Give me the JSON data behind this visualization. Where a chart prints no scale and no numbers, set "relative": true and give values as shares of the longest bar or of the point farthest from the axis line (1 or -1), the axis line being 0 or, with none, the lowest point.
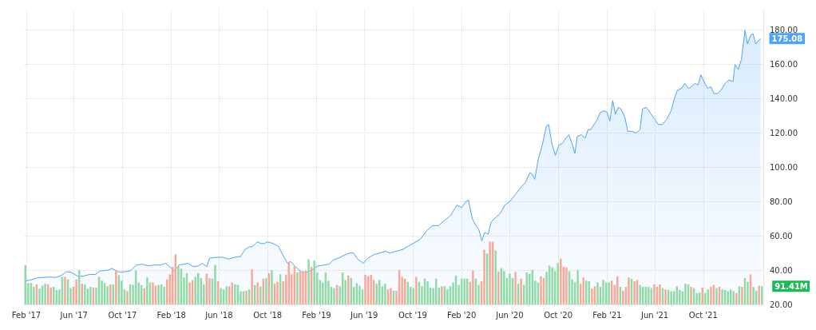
{
  "chart_data": [
    {
      "type": "area",
      "color": "#4da3f7",
      "marker": "none",
      "grid": true,
      "x": [
        "2017-01-26",
        "2017-02-15",
        "2017-03-01",
        "2017-03-15",
        "2017-04-01",
        "2017-04-15",
        "2017-05-01",
        "2017-05-12",
        "2017-05-25",
        "2017-06-10",
        "2017-06-25",
        "2017-07-10",
        "2017-07-25",
        "2017-08-05",
        "2017-08-25",
        "2017-09-05",
        "2017-09-20",
        "2017-10-05",
        "2017-10-20",
        "2017-11-05",
        "2017-11-20",
        "2017-12-05",
        "2017-12-20",
        "2018-01-05",
        "2018-01-18",
        "2018-02-01",
        "2018-02-08",
        "2018-02-20",
        "2018-03-05",
        "2018-03-15",
        "2018-03-28",
        "2018-04-10",
        "2018-04-20",
        "2018-05-01",
        "2018-05-08",
        "2018-05-25",
        "2018-06-10",
        "2018-06-25",
        "2018-07-10",
        "2018-07-25",
        "2018-08-05",
        "2018-08-15",
        "2018-08-25",
        "2018-09-05",
        "2018-09-15",
        "2018-09-22",
        "2018-10-01",
        "2018-10-15",
        "2018-10-28",
        "2018-11-08",
        "2018-11-20",
        "2018-11-28",
        "2018-12-10",
        "2018-12-25",
        "2019-01-05",
        "2019-01-20",
        "2019-02-05",
        "2019-02-20",
        "2019-03-05",
        "2019-03-15",
        "2019-03-28",
        "2019-04-10",
        "2019-04-25",
        "2019-05-05",
        "2019-05-15",
        "2019-05-30",
        "2019-06-10",
        "2019-06-25",
        "2019-07-10",
        "2019-07-25",
        "2019-08-05",
        "2019-08-20",
        "2019-09-05",
        "2019-09-20",
        "2019-10-05",
        "2019-10-20",
        "2019-11-05",
        "2019-11-20",
        "2019-12-05",
        "2019-12-20",
        "2020-01-05",
        "2020-01-20",
        "2020-02-01",
        "2020-02-10",
        "2020-02-18",
        "2020-02-28",
        "2020-03-08",
        "2020-03-15",
        "2020-03-23",
        "2020-03-30",
        "2020-04-08",
        "2020-04-15",
        "2020-04-28",
        "2020-05-08",
        "2020-05-20",
        "2020-06-01",
        "2020-06-15",
        "2020-06-28",
        "2020-07-10",
        "2020-07-22",
        "2020-07-28",
        "2020-08-03",
        "2020-08-12",
        "2020-08-22",
        "2020-09-01",
        "2020-09-07",
        "2020-09-15",
        "2020-09-24",
        "2020-10-03",
        "2020-10-12",
        "2020-10-20",
        "2020-10-28",
        "2020-11-06",
        "2020-11-12",
        "2020-11-18",
        "2020-11-28",
        "2020-12-08",
        "2020-12-15",
        "2020-12-22",
        "2021-01-05",
        "2021-01-15",
        "2021-01-25",
        "2021-02-01",
        "2021-02-08",
        "2021-02-15",
        "2021-02-22",
        "2021-03-01",
        "2021-03-08",
        "2021-03-18",
        "2021-03-25",
        "2021-04-05",
        "2021-04-15",
        "2021-04-25",
        "2021-05-01",
        "2021-05-10",
        "2021-05-20",
        "2021-06-01",
        "2021-06-10",
        "2021-06-20",
        "2021-07-01",
        "2021-07-12",
        "2021-07-20",
        "2021-07-28",
        "2021-08-08",
        "2021-08-15",
        "2021-08-25",
        "2021-09-01",
        "2021-09-10",
        "2021-09-18",
        "2021-09-25",
        "2021-10-05",
        "2021-10-12",
        "2021-10-20",
        "2021-10-28",
        "2021-11-05",
        "2021-11-15",
        "2021-11-25",
        "2021-12-05",
        "2021-12-15",
        "2021-12-20",
        "2021-12-28",
        "2022-01-05",
        "2022-01-14",
        "2022-01-20",
        "2022-01-28",
        "2022-02-03",
        "2022-02-10",
        "2022-02-22"
      ],
      "values": [
        33.5,
        34.5,
        35.5,
        35.8,
        36,
        35.7,
        37,
        39,
        38.8,
        36.5,
        36.5,
        37.5,
        37.5,
        39.5,
        40,
        41,
        39,
        39,
        39.5,
        43,
        43.5,
        42.5,
        43,
        43,
        44,
        41,
        39.5,
        43,
        43.5,
        44,
        42,
        42.5,
        44,
        42,
        47,
        47.5,
        47.5,
        46.5,
        47.5,
        48,
        52,
        53.5,
        54,
        56.5,
        55.5,
        55.5,
        56.5,
        55.5,
        54,
        49,
        44,
        45,
        42,
        39,
        38.5,
        40,
        42.5,
        43,
        43.5,
        46,
        47,
        48.5,
        50,
        50,
        46.5,
        44,
        47,
        49,
        50,
        51,
        50,
        51,
        52,
        54,
        56,
        58,
        63,
        66,
        66,
        69,
        72,
        78,
        76.5,
        79.5,
        81,
        70,
        66,
        64,
        57,
        62,
        61,
        68,
        71,
        73,
        78,
        80,
        84,
        88,
        91,
        97,
        96,
        93,
        105,
        113,
        124,
        125,
        114,
        107,
        113,
        114,
        117,
        119,
        113,
        108,
        118,
        119,
        117,
        122,
        122,
        127,
        132,
        133,
        132,
        127,
        139,
        131,
        135,
        134,
        129,
        121,
        121,
        120,
        122,
        134,
        135,
        132,
        128,
        125,
        125,
        128,
        133,
        140,
        145,
        146,
        149,
        146,
        147,
        149,
        148,
        154,
        149,
        146,
        147,
        143,
        143,
        145,
        149,
        151,
        150,
        160,
        157,
        163,
        180,
        172,
        177,
        178,
        172,
        175.08
      ],
      "xlim": [
        "2017-01-26",
        "2022-03-01"
      ],
      "xticks": [
        {
          "value": "2017-02-01",
          "label": "Feb '17"
        },
        {
          "value": "2017-06-01",
          "label": "Jun '17"
        },
        {
          "value": "2017-10-01",
          "label": "Oct '17"
        },
        {
          "value": "2018-02-01",
          "label": "Feb '18"
        },
        {
          "value": "2018-06-01",
          "label": "Jun '18"
        },
        {
          "value": "2018-10-01",
          "label": "Oct '18"
        },
        {
          "value": "2019-02-01",
          "label": "Feb '19"
        },
        {
          "value": "2019-06-01",
          "label": "Jun '19"
        },
        {
          "value": "2019-10-01",
          "label": "Oct '19"
        },
        {
          "value": "2020-02-01",
          "label": "Feb '20"
        },
        {
          "value": "2020-06-01",
          "label": "Jun '20"
        },
        {
          "value": "2020-10-01",
          "label": "Oct '20"
        },
        {
          "value": "2021-02-01",
          "label": "Feb '21"
        },
        {
          "value": "2021-06-01",
          "label": "Jun '21"
        },
        {
          "value": "2021-10-01",
          "label": "Oct '21"
        }
      ],
      "ylim": [
        20,
        192
      ],
      "yticks": [
        {
          "value": 20,
          "label": "20.00"
        },
        {
          "value": 40,
          "label": "40.00"
        },
        {
          "value": 60,
          "label": "60.00"
        },
        {
          "value": 80,
          "label": "80.00"
        },
        {
          "value": 100,
          "label": "100.00"
        },
        {
          "value": 120,
          "label": "120.00"
        },
        {
          "value": 140,
          "label": "140.00"
        },
        {
          "value": 160,
          "label": "160.00"
        },
        {
          "value": 180,
          "label": "180.00"
        }
      ],
      "annotations": [
        {
          "text": "175.08",
          "x": "2022-02-22",
          "y": 175.08
        }
      ]
    },
    {
      "type": "bar",
      "relative": true,
      "annotations": [
        "91.41M"
      ],
      "categories": [
        null,
        null,
        null,
        null,
        null,
        null,
        null,
        null,
        null,
        null,
        null,
        null,
        null,
        null,
        null,
        null,
        null,
        null,
        null,
        null,
        null,
        null,
        null,
        null,
        null,
        null,
        null,
        null,
        null,
        null,
        null,
        null,
        null,
        null,
        null,
        null,
        null,
        null,
        null,
        null,
        null,
        null,
        null,
        null,
        null,
        null,
        null,
        null,
        null,
        null,
        null,
        null,
        null,
        null,
        null,
        null,
        null,
        null,
        null,
        null,
        null,
        null,
        null,
        null,
        null,
        null,
        null,
        null,
        null,
        null,
        null,
        null,
        null,
        null,
        null,
        null,
        null,
        null,
        null,
        null,
        null,
        null,
        null,
        null,
        null,
        null,
        null,
        null,
        null,
        null,
        null,
        null,
        null,
        null,
        null,
        null,
        null,
        null,
        null,
        null,
        null,
        null,
        null,
        null,
        null,
        null,
        null,
        null,
        null,
        null,
        null,
        null,
        null,
        null,
        null,
        null,
        null,
        null,
        null,
        null,
        null,
        null,
        null,
        null,
        null,
        null,
        null,
        null,
        null,
        null,
        null,
        null,
        null,
        null,
        null,
        null,
        null,
        null,
        null,
        null,
        null,
        null,
        null,
        null,
        null,
        null,
        null,
        null,
        null,
        null,
        null,
        null,
        null,
        null,
        null,
        null,
        null,
        null,
        null,
        null,
        null,
        null,
        null,
        null,
        null,
        null,
        null,
        null,
        null,
        null,
        null,
        null,
        null,
        null,
        null,
        null,
        null,
        null,
        null,
        null,
        null,
        null,
        null,
        null,
        null,
        null,
        null,
        null,
        null,
        null,
        null,
        null,
        null,
        null,
        null,
        null,
        null,
        null,
        null,
        null,
        null,
        null,
        null,
        null,
        null,
        null,
        null,
        null,
        null,
        null,
        null,
        null,
        null,
        null,
        null,
        null,
        null,
        null,
        null,
        null,
        null,
        null,
        null,
        null,
        null,
        null,
        null,
        null,
        null,
        null,
        null,
        null,
        null,
        null,
        null,
        null,
        null,
        null,
        null,
        null,
        null,
        null,
        null,
        null,
        null,
        null,
        null,
        null,
        null,
        null,
        null,
        null,
        null,
        null,
        null,
        null,
        null,
        null,
        null,
        null,
        null
      ],
      "values": [
        0.63,
        0.34,
        0.34,
        0.28,
        0.32,
        0.25,
        0.3,
        0.33,
        0.32,
        0.27,
        0.28,
        0.23,
        0.24,
        0.44,
        0.44,
        0.4,
        0.26,
        0.28,
        0.4,
        0.55,
        0.33,
        0.32,
        0.25,
        0.28,
        0.27,
        0.27,
        0.44,
        0.38,
        0.34,
        0.29,
        0.32,
        0.32,
        0.55,
        0.47,
        0.38,
        0.24,
        0.21,
        0.32,
        0.31,
        0.54,
        0.35,
        0.31,
        0.26,
        0.43,
        0.35,
        0.35,
        0.3,
        0.31,
        0.32,
        0.28,
        0.4,
        0.48,
        0.6,
        0.8,
        0.61,
        0.57,
        0.43,
        0.5,
        0.35,
        0.39,
        0.44,
        0.5,
        0.42,
        0.32,
        0.49,
        0.42,
        0.41,
        0.63,
        0.37,
        0.26,
        0.24,
        0.29,
        0.29,
        0.35,
        0.32,
        0.31,
        0.21,
        0.21,
        0.22,
        0.24,
        0.56,
        0.31,
        0.35,
        0.29,
        0.41,
        0.42,
        0.5,
        0.55,
        0.33,
        0.36,
        0.48,
        0.37,
        0.47,
        0.68,
        0.48,
        0.61,
        0.51,
        0.53,
        0.53,
        0.54,
        0.72,
        0.6,
        0.7,
        0.51,
        0.39,
        0.35,
        0.51,
        0.38,
        0.28,
        0.26,
        0.31,
        0.29,
        0.51,
        0.39,
        0.46,
        0.42,
        0.28,
        0.34,
        0.3,
        0.24,
        0.47,
        0.45,
        0.47,
        0.39,
        0.33,
        0.39,
        0.29,
        0.33,
        0.24,
        0.26,
        0.22,
        0.22,
        0.55,
        0.44,
        0.41,
        0.36,
        0.28,
        0.26,
        0.44,
        0.36,
        0.29,
        0.41,
        0.37,
        0.27,
        0.26,
        0.41,
        0.27,
        0.29,
        0.29,
        0.24,
        0.29,
        0.35,
        0.46,
        0.31,
        0.41,
        0.41,
        0.41,
        0.36,
        0.54,
        0.41,
        0.31,
        0.37,
        0.87,
        0.81,
        1.0,
        1.0,
        0.86,
        0.52,
        0.58,
        0.53,
        0.42,
        0.49,
        0.42,
        0.52,
        0.33,
        0.41,
        0.31,
        0.51,
        0.49,
        0.55,
        0.38,
        0.35,
        0.45,
        0.42,
        0.52,
        0.62,
        0.59,
        0.53,
        0.66,
        0.73,
        0.6,
        0.59,
        0.53,
        0.4,
        0.35,
        0.55,
        0.33,
        0.43,
        0.38,
        0.37,
        0.25,
        0.29,
        0.35,
        0.28,
        0.39,
        0.35,
        0.35,
        0.38,
        0.31,
        0.45,
        0.28,
        0.22,
        0.28,
        0.43,
        0.41,
        0.37,
        0.39,
        0.31,
        0.28,
        0.28,
        0.28,
        0.26,
        0.32,
        0.28,
        0.32,
        0.26,
        0.24,
        0.23,
        0.21,
        0.21,
        0.29,
        0.23,
        0.21,
        0.33,
        0.32,
        0.28,
        0.26,
        0.18,
        0.19,
        0.27,
        0.18,
        0.24,
        0.28,
        0.31,
        0.26,
        0.28,
        0.24,
        0.23,
        0.21,
        0.24,
        0.21,
        0.18,
        0.29,
        0.28,
        0.42,
        0.36,
        0.48,
        0.28,
        0.22,
        0.3,
        0.29
      ],
      "colors": [
        "#8fdba8",
        "#8fdba8",
        "#8fdba8",
        "#8fdba8",
        "#f7a898",
        "#8fdba8",
        "#8fdba8",
        "#8fdba8",
        "#f7a898",
        "#f7a898",
        "#8fdba8",
        "#8fdba8",
        "#8fdba8",
        "#8fdba8",
        "#f7a898",
        "#8fdba8",
        "#8fdba8",
        "#f7a898",
        "#f7a898",
        "#8fdba8",
        "#f7a898",
        "#8fdba8",
        "#8fdba8",
        "#8fdba8",
        "#f7a898",
        "#8fdba8",
        "#8fdba8",
        "#8fdba8",
        "#8fdba8",
        "#8fdba8",
        "#f7a898",
        "#8fdba8",
        "#f7a898",
        "#8fdba8",
        "#8fdba8",
        "#8fdba8",
        "#f7a898",
        "#8fdba8",
        "#8fdba8",
        "#8fdba8",
        "#8fdba8",
        "#8fdba8",
        "#f7a898",
        "#8fdba8",
        "#8fdba8",
        "#f7a898",
        "#f7a898",
        "#8fdba8",
        "#8fdba8",
        "#8fdba8",
        "#f7a898",
        "#f7a898",
        "#f7a898",
        "#f7a898",
        "#8fdba8",
        "#8fdba8",
        "#8fdba8",
        "#8fdba8",
        "#f7a898",
        "#f7a898",
        "#8fdba8",
        "#8fdba8",
        "#8fdba8",
        "#8fdba8",
        "#f7a898",
        "#f7a898",
        "#8fdba8",
        "#8fdba8",
        "#f7a898",
        "#8fdba8",
        "#8fdba8",
        "#8fdba8",
        "#f7a898",
        "#f7a898",
        "#8fdba8",
        "#8fdba8",
        "#8fdba8",
        "#8fdba8",
        "#f7a898",
        "#8fdba8",
        "#f7a898",
        "#8fdba8",
        "#f7a898",
        "#8fdba8",
        "#f7a898",
        "#8fdba8",
        "#f7a898",
        "#8fdba8",
        "#f7a898",
        "#f7a898",
        "#8fdba8",
        "#f7a898",
        "#f7a898",
        "#f7a898",
        "#f7a898",
        "#f7a898",
        "#8fdba8",
        "#f7a898",
        "#f7a898",
        "#f7a898",
        "#8fdba8",
        "#f7a898",
        "#8fdba8",
        "#8fdba8",
        "#8fdba8",
        "#8fdba8",
        "#8fdba8",
        "#8fdba8",
        "#8fdba8",
        "#8fdba8",
        "#f7a898",
        "#8fdba8",
        "#8fdba8",
        "#8fdba8",
        "#f7a898",
        "#8fdba8",
        "#8fdba8",
        "#8fdba8",
        "#8fdba8",
        "#8fdba8",
        "#f7a898",
        "#f7a898",
        "#f7a898",
        "#f7a898",
        "#8fdba8",
        "#8fdba8",
        "#8fdba8",
        "#8fdba8",
        "#f7a898",
        "#f7a898",
        "#8fdba8",
        "#f7a898",
        "#f7a898",
        "#f7a898",
        "#f7a898",
        "#8fdba8",
        "#8fdba8",
        "#8fdba8",
        "#f7a898",
        "#8fdba8",
        "#8fdba8",
        "#8fdba8",
        "#8fdba8",
        "#8fdba8",
        "#8fdba8",
        "#8fdba8",
        "#8fdba8",
        "#f7a898",
        "#8fdba8",
        "#8fdba8",
        "#8fdba8",
        "#8fdba8",
        "#8fdba8",
        "#8fdba8",
        "#8fdba8",
        "#8fdba8",
        "#8fdba8",
        "#f7a898",
        "#f7a898",
        "#8fdba8",
        "#8fdba8",
        "#f7a898",
        "#f7a898",
        "#8fdba8",
        "#f7a898",
        "#f7a898",
        "#8fdba8",
        "#f7a898",
        "#8fdba8",
        "#8fdba8",
        "#8fdba8",
        "#8fdba8",
        "#8fdba8",
        "#f7a898",
        "#8fdba8",
        "#f7a898",
        "#8fdba8",
        "#8fdba8",
        "#8fdba8",
        "#8fdba8",
        "#8fdba8",
        "#8fdba8",
        "#f7a898",
        "#f7a898",
        "#8fdba8",
        "#8fdba8",
        "#8fdba8",
        "#8fdba8",
        "#8fdba8",
        "#f7a898",
        "#f7a898",
        "#f7a898",
        "#8fdba8",
        "#8fdba8",
        "#8fdba8",
        "#8fdba8",
        "#f7a898",
        "#f7a898",
        "#8fdba8",
        "#8fdba8",
        "#f7a898",
        "#f7a898",
        "#8fdba8",
        "#8fdba8",
        "#8fdba8",
        "#8fdba8",
        "#8fdba8",
        "#f7a898",
        "#f7a898",
        "#f7a898",
        "#8fdba8",
        "#f7a898",
        "#f7a898",
        "#f7a898",
        "#8fdba8",
        "#f7a898",
        "#f7a898",
        "#8fdba8",
        "#8fdba8",
        "#8fdba8",
        "#8fdba8",
        "#8fdba8",
        "#f7a898",
        "#f7a898",
        "#f7a898",
        "#8fdba8",
        "#f7a898",
        "#8fdba8",
        "#8fdba8",
        "#8fdba8",
        "#8fdba8",
        "#8fdba8",
        "#8fdba8",
        "#8fdba8",
        "#8fdba8",
        "#f7a898",
        "#8fdba8",
        "#8fdba8",
        "#8fdba8",
        "#f7a898",
        "#8fdba8",
        "#8fdba8",
        "#f7a898",
        "#f7a898",
        "#8fdba8",
        "#f7a898",
        "#8fdba8",
        "#8fdba8",
        "#8fdba8",
        "#8fdba8",
        "#8fdba8",
        "#f7a898",
        "#8fdba8",
        "#f7a898",
        "#8fdba8",
        "#8fdba8",
        "#f7a898",
        "#8fdba8",
        "#8fdba8",
        "#f7a898",
        "#8fdba8"
      ]
    }
  ]
}
